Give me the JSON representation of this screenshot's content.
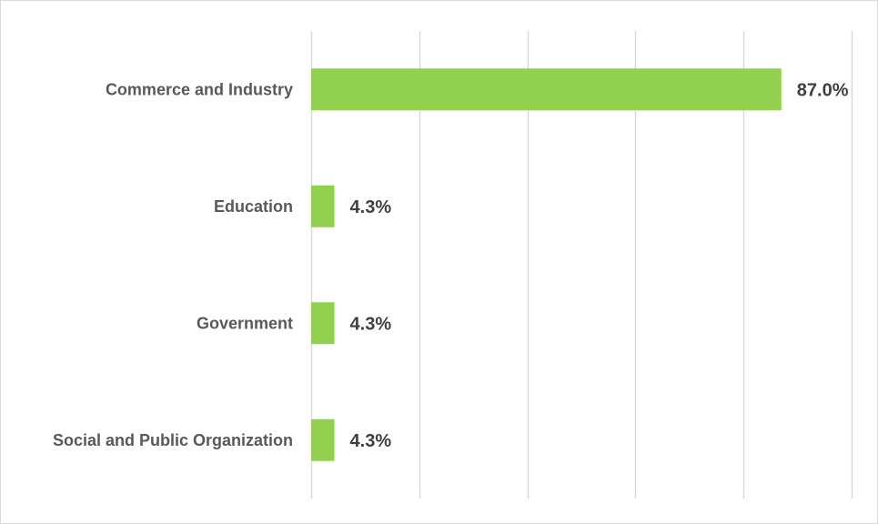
{
  "chart_data": {
    "type": "bar",
    "orientation": "horizontal",
    "categories": [
      "Commerce and Industry",
      "Education",
      "Government",
      "Social and Public Organization"
    ],
    "values": [
      87.0,
      4.3,
      4.3,
      4.3
    ],
    "data_labels": [
      "87.0%",
      "4.3%",
      "4.3%",
      "4.3%"
    ],
    "xlim": [
      0,
      100
    ],
    "grid": true,
    "title": "",
    "xlabel": "",
    "ylabel": "",
    "bar_color": "#92d050",
    "grid_color": "#d9d9d9"
  }
}
